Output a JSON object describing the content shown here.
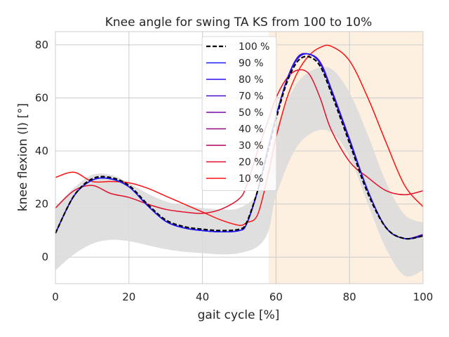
{
  "chart_data": {
    "type": "line",
    "title": "Knee angle for swing TA KS from 100 to 10%",
    "xlabel": "gait cycle [%]",
    "ylabel": "knee flexion (l) [°]",
    "xlim": [
      0,
      100
    ],
    "ylim": [
      -10,
      85
    ],
    "x_ticks": [
      0,
      20,
      40,
      60,
      80,
      100
    ],
    "y_ticks": [
      0,
      20,
      40,
      60,
      80
    ],
    "grid": true,
    "legend_position": "top-center",
    "swing_region": {
      "x_start": 58,
      "x_end": 100,
      "color": "#fdf0e0"
    },
    "normal_band": {
      "color": "#dcdcdc",
      "x": [
        0,
        5,
        10,
        15,
        20,
        25,
        30,
        35,
        40,
        45,
        50,
        55,
        58,
        60,
        65,
        70,
        75,
        80,
        85,
        90,
        95,
        100
      ],
      "upper": [
        19,
        26,
        31,
        31,
        28,
        24,
        21,
        19.5,
        18.5,
        18,
        18.5,
        24,
        37,
        48,
        64,
        70.5,
        71,
        62,
        46,
        28,
        16,
        13
      ],
      "lower": [
        -5,
        1,
        5,
        6.5,
        6,
        4.5,
        3,
        2,
        1.5,
        1,
        1.5,
        4,
        10,
        23,
        40,
        47,
        47,
        38,
        20,
        3,
        -7,
        -5
      ]
    },
    "x": [
      0,
      5,
      10,
      15,
      20,
      25,
      30,
      35,
      40,
      45,
      50,
      52,
      55,
      58,
      60,
      63,
      66,
      69,
      72,
      75,
      80,
      85,
      90,
      95,
      100
    ],
    "series": [
      {
        "name": "100 %",
        "color": "#000000",
        "dashed": true,
        "width": 2.2,
        "values": [
          9,
          23,
          29.5,
          30,
          27,
          20,
          14,
          11.5,
          10.5,
          10,
          10.5,
          13,
          25,
          41,
          52,
          66,
          74,
          75.5,
          72,
          62,
          43,
          24,
          11,
          7,
          8
        ]
      },
      {
        "name": "90 %",
        "color": "#1a1aff",
        "width": 1.5,
        "values": [
          9,
          23,
          29,
          29.5,
          26.5,
          19.5,
          13.5,
          11,
          10,
          9.5,
          10,
          12.5,
          25,
          42,
          53,
          67,
          75,
          76.5,
          73,
          63,
          44,
          25,
          11,
          7,
          8
        ]
      },
      {
        "name": "80 %",
        "color": "#2a0ff0",
        "width": 1.5,
        "values": [
          9,
          23,
          29,
          29.5,
          26.5,
          19.5,
          13.5,
          11,
          10,
          9.5,
          10,
          12.5,
          25,
          42,
          53,
          67,
          75,
          76.5,
          73,
          63,
          44,
          25,
          11,
          7,
          8
        ]
      },
      {
        "name": "70 %",
        "color": "#4a0cd0",
        "width": 1.5,
        "values": [
          9,
          23,
          29,
          29.5,
          26.5,
          19.5,
          13.5,
          11,
          10,
          9.5,
          10,
          12.5,
          25,
          42,
          53,
          67,
          75.5,
          76.5,
          73.5,
          63.5,
          44.5,
          25,
          11,
          7,
          8.5
        ]
      },
      {
        "name": "50 %",
        "color": "#7a0aa8",
        "width": 1.5,
        "values": [
          9,
          23,
          29,
          29.5,
          26.5,
          19.5,
          13.5,
          11,
          10,
          9.5,
          10,
          12.5,
          25,
          42,
          53,
          67,
          75.5,
          76.5,
          73.5,
          63.5,
          44.5,
          25,
          11,
          7,
          8.5
        ]
      },
      {
        "name": "40 %",
        "color": "#980885",
        "width": 1.5,
        "values": [
          9,
          23,
          29,
          29.5,
          26.5,
          19.5,
          13.5,
          11,
          10,
          9.5,
          10,
          12.5,
          25,
          42,
          53,
          67,
          75.5,
          76.5,
          73.5,
          63.5,
          44.5,
          25,
          11,
          7,
          8.5
        ]
      },
      {
        "name": "30 %",
        "color": "#b40560",
        "width": 1.5,
        "values": [
          9,
          23,
          29,
          29.5,
          26.5,
          19.5,
          13.5,
          11,
          10,
          9.5,
          10,
          12.5,
          25,
          42,
          53,
          67,
          75.5,
          76.5,
          73.5,
          63.5,
          44.5,
          25,
          11,
          7,
          8.5
        ]
      },
      {
        "name": "20 %",
        "color": "#e0102a",
        "width": 1.5,
        "values": [
          18.5,
          25,
          27,
          24,
          22.5,
          20,
          18,
          17,
          16.5,
          18,
          22,
          27,
          40,
          52,
          60,
          67.5,
          70.5,
          69,
          60,
          48,
          36,
          30,
          25,
          23.5,
          25
        ]
      },
      {
        "name": "10 %",
        "color": "#ff1010",
        "width": 1.5,
        "values": [
          30,
          32,
          28.5,
          28.5,
          28,
          26,
          23,
          20,
          17,
          14,
          12,
          13,
          16,
          32,
          45,
          60,
          70,
          76,
          79,
          79.5,
          74,
          60,
          43,
          27,
          19
        ]
      }
    ]
  }
}
